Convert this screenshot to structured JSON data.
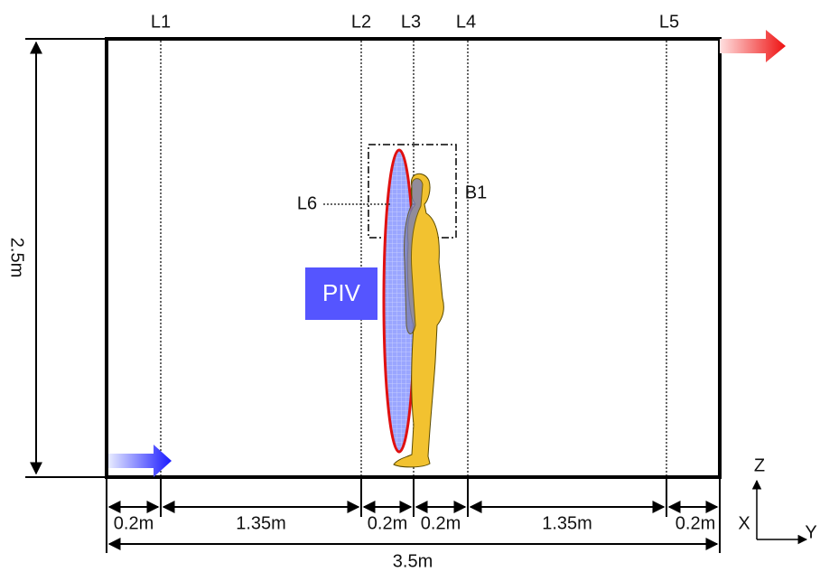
{
  "line_labels": [
    "L1",
    "L2",
    "L3",
    "L4",
    "L5"
  ],
  "probe_label": "L6",
  "box_label": "B1",
  "piv_label": "PIV",
  "height_label": "2.5m",
  "segment_labels": [
    "0.2m",
    "1.35m",
    "0.2m",
    "0.2m",
    "1.35m",
    "0.2m"
  ],
  "width_label": "3.5m",
  "axes": {
    "z": "Z",
    "x": "X",
    "y": "Y"
  }
}
